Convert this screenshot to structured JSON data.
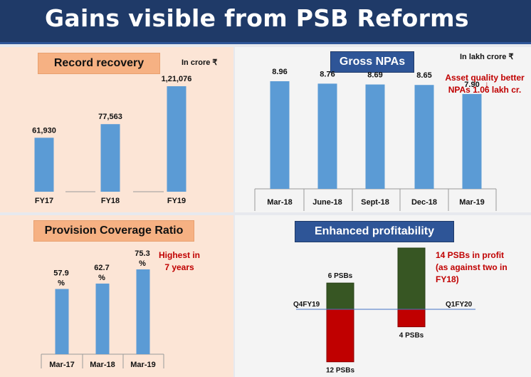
{
  "header": {
    "title": "Gains visible from PSB Reforms"
  },
  "colors": {
    "bar": "#5b9bd5",
    "green": "#375623",
    "red": "#c00000",
    "header": "#1f3a68"
  },
  "chart_data": [
    {
      "id": "record-recovery",
      "type": "bar",
      "title": "Record recovery",
      "unit_label": "In crore ₹",
      "categories": [
        "FY17",
        "FY18",
        "FY19"
      ],
      "values": [
        61930,
        77563,
        121076
      ],
      "value_labels": [
        "61,930",
        "77,563",
        "1,21,076"
      ]
    },
    {
      "id": "gross-npas",
      "type": "bar",
      "title": "Gross NPAs",
      "unit_label": "In lakh crore ₹",
      "categories": [
        "Mar-18",
        "June-18",
        "Sept-18",
        "Dec-18",
        "Mar-19"
      ],
      "values": [
        8.96,
        8.76,
        8.69,
        8.65,
        7.9
      ],
      "value_labels": [
        "8.96",
        "8.76",
        "8.69",
        "8.65",
        "7.90"
      ],
      "note_lines": [
        "Asset quality better",
        "NPAs 1.06 lakh cr."
      ]
    },
    {
      "id": "provision-coverage",
      "type": "bar",
      "title": "Provision Coverage Ratio",
      "categories": [
        "Mar-17",
        "Mar-18",
        "Mar-19"
      ],
      "values": [
        57.9,
        62.7,
        75.3
      ],
      "value_labels": [
        "57.9",
        "62.7",
        "75.3"
      ],
      "value_suffix": "%",
      "note_lines": [
        "Highest in",
        "7 years"
      ]
    },
    {
      "id": "enhanced-profitability",
      "type": "bar",
      "title": "Enhanced profitability",
      "categories": [
        "Q4FY19",
        "Q1FY20"
      ],
      "profit_psbs": [
        6,
        14
      ],
      "loss_psbs": [
        12,
        4
      ],
      "profit_labels": [
        "6 PSBs",
        ""
      ],
      "loss_labels": [
        "12 PSBs",
        "4 PSBs"
      ],
      "note_lines": [
        "14 PSBs in profit",
        "(as against two in",
        "FY18)"
      ]
    }
  ]
}
